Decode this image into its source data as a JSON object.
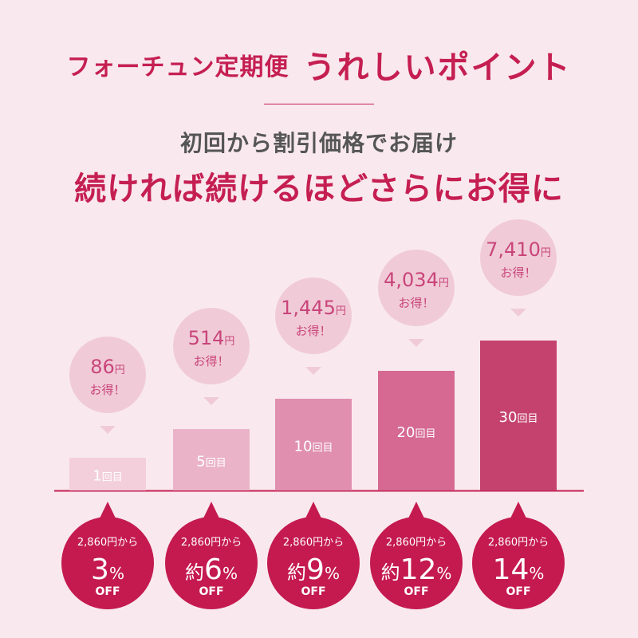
{
  "header": {
    "title_main": "フォーチュン定期便",
    "title_highlight": "うれしいポイント",
    "subtitle": "初回から割引価格でお届け",
    "headline": "続ければ続けるほどさらにお得に"
  },
  "colors": {
    "accent": "#c51f52",
    "bubble": "#f0cbd7",
    "bubble_text": "#c9457a",
    "badge": "#c41a4f",
    "bars": [
      "#f3cfdc",
      "#eab3c7",
      "#e08fae",
      "#d56991",
      "#c5426f"
    ]
  },
  "chart_data": {
    "type": "bar",
    "categories": [
      "1回目",
      "5回目",
      "10回目",
      "20回目",
      "30回目"
    ],
    "values": [
      86,
      514,
      1445,
      4034,
      7410
    ],
    "value_unit": "円",
    "value_suffix": "お得！",
    "discount_prefix": "2,860円から",
    "discount_approx": [
      "",
      "約",
      "約",
      "約",
      ""
    ],
    "discount_percent": [
      3,
      6,
      9,
      12,
      14
    ],
    "percent_sign": "%",
    "off_label": "OFF",
    "baseline": "#c51f52"
  }
}
